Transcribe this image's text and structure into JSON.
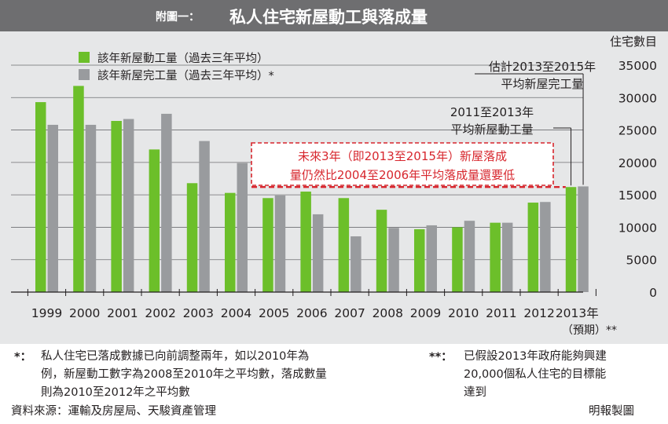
{
  "title": {
    "label": "附圖一：",
    "text": "私人住宅新屋動工與落成量"
  },
  "chart_data": {
    "type": "bar",
    "categories": [
      "1999",
      "2000",
      "2001",
      "2002",
      "2003",
      "2004",
      "2005",
      "2006",
      "2007",
      "2008",
      "2009",
      "2010",
      "2011",
      "2012",
      "2013年"
    ],
    "x_sublabel": "（預期）**",
    "y_unit_label": "住宅數目",
    "ylim": [
      0,
      35000
    ],
    "yticks": [
      0,
      5000,
      10000,
      15000,
      20000,
      25000,
      30000,
      35000
    ],
    "grid": true,
    "legend_position": "top-left",
    "series": [
      {
        "name": "該年新屋動工量（過去三年平均）",
        "color": "#6cbf2a",
        "values": [
          29300,
          31800,
          26400,
          22000,
          16800,
          15300,
          14500,
          15500,
          14500,
          12700,
          9700,
          10000,
          10700,
          13800,
          16200
        ]
      },
      {
        "name": "該年新屋完工量（過去三年平均）*",
        "color": "#999b9e",
        "values": [
          25800,
          25800,
          26700,
          27500,
          23300,
          19900,
          14900,
          12000,
          8600,
          9900,
          10300,
          11000,
          10700,
          13900,
          16300
        ]
      }
    ],
    "reference_line": {
      "value": 16200,
      "color": "#d7262d"
    },
    "annotations": {
      "callout_lines": [
        "未來3年（即2013至2015年）新屋落成",
        "量仍然比2004至2006年平均落成量還要低"
      ],
      "callout_color": "#d7262d",
      "completion_label": [
        "估計2013至2015年",
        "平均新屋完工量"
      ],
      "start_label": [
        "2011至2013年",
        "平均新屋動工量"
      ]
    }
  },
  "notes": {
    "left_mark": "*：",
    "left_lines": [
      "私人住宅已落成數據已向前調整兩年，如以2010年為",
      "例，新屋動工數字為2008至2010年之平均數，落成數量",
      "則為2010至2012年之平均數"
    ],
    "right_mark": "**：",
    "right_lines": [
      "已假設2013年政府能夠興建",
      "20,000個私人住宅的目標能",
      "達到"
    ]
  },
  "footer": {
    "source": "資料來源：運輸及房屋局、天駿資產管理",
    "credit": "明報製圖"
  }
}
